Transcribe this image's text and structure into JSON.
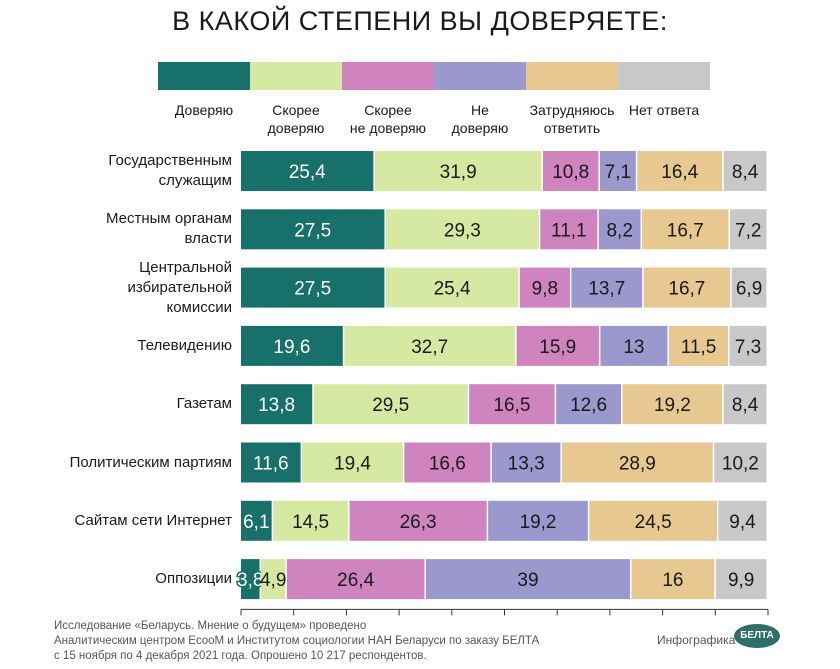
{
  "title": "В КАКОЙ СТЕПЕНИ ВЫ ДОВЕРЯЕТЕ:",
  "footer": {
    "lines": [
      "Исследование «Беларусь. Мнение о будущем» проведено",
      "Аналитическим центром EcooM и Институтом социологии НАН Беларуси по заказу БЕЛТА",
      "с 15 ноября по 4 декабря 2021 года. Опрошено 10 217 респондентов."
    ],
    "credit": "Инфографика",
    "logo": "БЕЛТА"
  },
  "chart_data": {
    "type": "bar",
    "orientation": "horizontal",
    "stacked": true,
    "title": "В КАКОЙ СТЕПЕНИ ВЫ ДОВЕРЯЕТЕ:",
    "legend_position": "top",
    "categories": [
      "Государственным служащим",
      "Местным органам власти",
      "Центральной избирательной комиссии",
      "Телевидению",
      "Газетам",
      "Политическим партиям",
      "Сайтам сети Интернет",
      "Оппозиции"
    ],
    "series": [
      {
        "name": "Доверяю",
        "color": "#18706a",
        "label_color": "#ffffff",
        "values": [
          25.4,
          27.5,
          27.5,
          19.6,
          13.8,
          11.6,
          6.1,
          3.8
        ],
        "labels": [
          "25,4",
          "27,5",
          "27,5",
          "19,6",
          "13,8",
          "11,6",
          "6,1",
          "3,8"
        ]
      },
      {
        "name": "Скорее доверяю",
        "color": "#d6e9a2",
        "label_color": "#1a1a1a",
        "values": [
          31.9,
          29.3,
          25.4,
          32.7,
          29.5,
          19.4,
          14.5,
          4.9
        ],
        "labels": [
          "31,9",
          "29,3",
          "25,4",
          "32,7",
          "29,5",
          "19,4",
          "14,5",
          "4,9"
        ]
      },
      {
        "name": "Скорее не доверяю",
        "color": "#cf84c0",
        "label_color": "#1a1a1a",
        "values": [
          10.8,
          11.1,
          9.8,
          15.9,
          16.5,
          16.6,
          26.3,
          26.4
        ],
        "labels": [
          "10,8",
          "11,1",
          "9,8",
          "15,9",
          "16,5",
          "16,6",
          "26,3",
          "26,4"
        ]
      },
      {
        "name": "Не доверяю",
        "color": "#9b98cd",
        "label_color": "#1a1a1a",
        "values": [
          7.1,
          8.2,
          13.7,
          13,
          12.6,
          13.3,
          19.2,
          39
        ],
        "labels": [
          "7,1",
          "8,2",
          "13,7",
          "13",
          "12,6",
          "13,3",
          "19,2",
          "39"
        ]
      },
      {
        "name": "Затрудняюсь ответить",
        "color": "#e7c890",
        "label_color": "#1a1a1a",
        "values": [
          16.4,
          16.7,
          16.7,
          11.5,
          19.2,
          28.9,
          24.5,
          16
        ],
        "labels": [
          "16,4",
          "16,7",
          "16,7",
          "11,5",
          "19,2",
          "28,9",
          "24,5",
          "16"
        ]
      },
      {
        "name": "Нет ответа",
        "color": "#c8c8c8",
        "label_color": "#1a1a1a",
        "values": [
          8.4,
          7.2,
          6.9,
          7.3,
          8.4,
          10.2,
          9.4,
          9.9
        ],
        "labels": [
          "8,4",
          "7,2",
          "6,9",
          "7,3",
          "8,4",
          "10,2",
          "9,4",
          "9,9"
        ]
      }
    ],
    "legend_labels": [
      [
        "Доверяю"
      ],
      [
        "Скорее",
        "доверяю"
      ],
      [
        "Скорее",
        "не доверяю"
      ],
      [
        "Не",
        "доверяю"
      ],
      [
        "Затрудняюсь",
        "ответить"
      ],
      [
        "Нет ответа"
      ]
    ],
    "category_labels": [
      [
        "Государственным",
        "служащим"
      ],
      [
        "Местным органам",
        "власти"
      ],
      [
        "Центральной",
        "избирательной",
        "комиссии"
      ],
      [
        "Телевидению"
      ],
      [
        "Газетам"
      ],
      [
        "Политическим партиям"
      ],
      [
        "Сайтам сети Интернет"
      ],
      [
        "Оппозиции"
      ]
    ]
  }
}
